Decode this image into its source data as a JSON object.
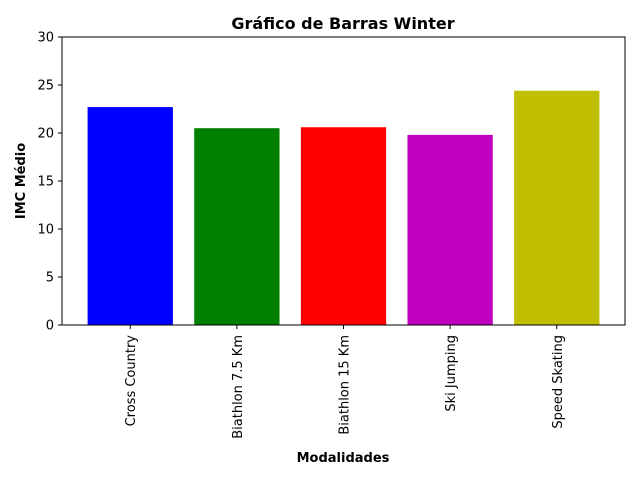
{
  "chart_data": {
    "type": "bar",
    "title": "Gráfico de Barras Winter",
    "xlabel": "Modalidades",
    "ylabel": "IMC Médio",
    "categories": [
      "Cross Country",
      "Biathlon 7.5 Km",
      "Biathlon 15 Km",
      "Ski Jumping",
      "Speed Skating"
    ],
    "values": [
      22.7,
      20.5,
      20.6,
      19.8,
      24.4
    ],
    "colors": [
      "#0000ff",
      "#008000",
      "#ff0000",
      "#bf00bf",
      "#bfbf00"
    ],
    "ylim": [
      0,
      30
    ],
    "yticks": [
      0,
      5,
      10,
      15,
      20,
      25,
      30
    ],
    "grid": false,
    "legend": "none"
  }
}
